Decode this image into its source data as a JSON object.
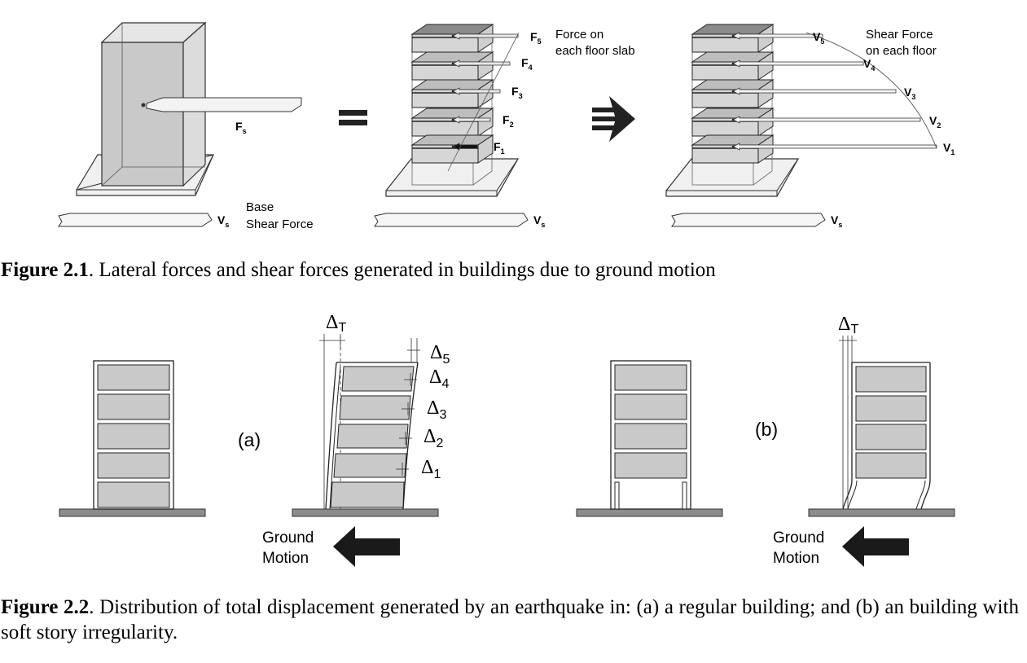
{
  "figure1": {
    "label_fs": "F",
    "label_fs_sub": "s",
    "label_vs": "V",
    "label_vs_sub": "s",
    "base_shear_line1": "Base",
    "base_shear_line2": "Shear Force",
    "floor_forces": [
      {
        "main": "F",
        "sub": "5"
      },
      {
        "main": "F",
        "sub": "4"
      },
      {
        "main": "F",
        "sub": "3"
      },
      {
        "main": "F",
        "sub": "2"
      },
      {
        "main": "F",
        "sub": "1"
      }
    ],
    "force_note_line1": "Force on",
    "force_note_line2": "each floor slab",
    "shear_forces": [
      {
        "main": "V",
        "sub": "5"
      },
      {
        "main": "V",
        "sub": "4"
      },
      {
        "main": "V",
        "sub": "3"
      },
      {
        "main": "V",
        "sub": "2"
      },
      {
        "main": "V",
        "sub": "1"
      }
    ],
    "shear_note_line1": "Shear Force",
    "shear_note_line2": "on each floor",
    "caption_bold": "Figure 2.1",
    "caption_rest": ". Lateral forces and shear forces generated in buildings due to ground motion"
  },
  "figure2": {
    "label_a": "(a)",
    "label_b": "(b)",
    "delta_t": {
      "main": "Δ",
      "sub": "T"
    },
    "story_drifts": [
      {
        "main": "Δ",
        "sub": "5"
      },
      {
        "main": "Δ",
        "sub": "4"
      },
      {
        "main": "Δ",
        "sub": "3"
      },
      {
        "main": "Δ",
        "sub": "2"
      },
      {
        "main": "Δ",
        "sub": "1"
      }
    ],
    "ground_motion_line1": "Ground",
    "ground_motion_line2": "Motion",
    "caption_bold": "Figure 2.2",
    "caption_rest": ". Distribution of total displacement generated by an earthquake in: (a) a regular building; and (b) an building with soft story irregularity."
  },
  "colors": {
    "slab_fill": "#c8c8c8",
    "panel_fill": "#d0d0d0",
    "ground_fill": "#8c8c8c",
    "arrow_fill": "#1a1a1a",
    "line": "#222222"
  }
}
